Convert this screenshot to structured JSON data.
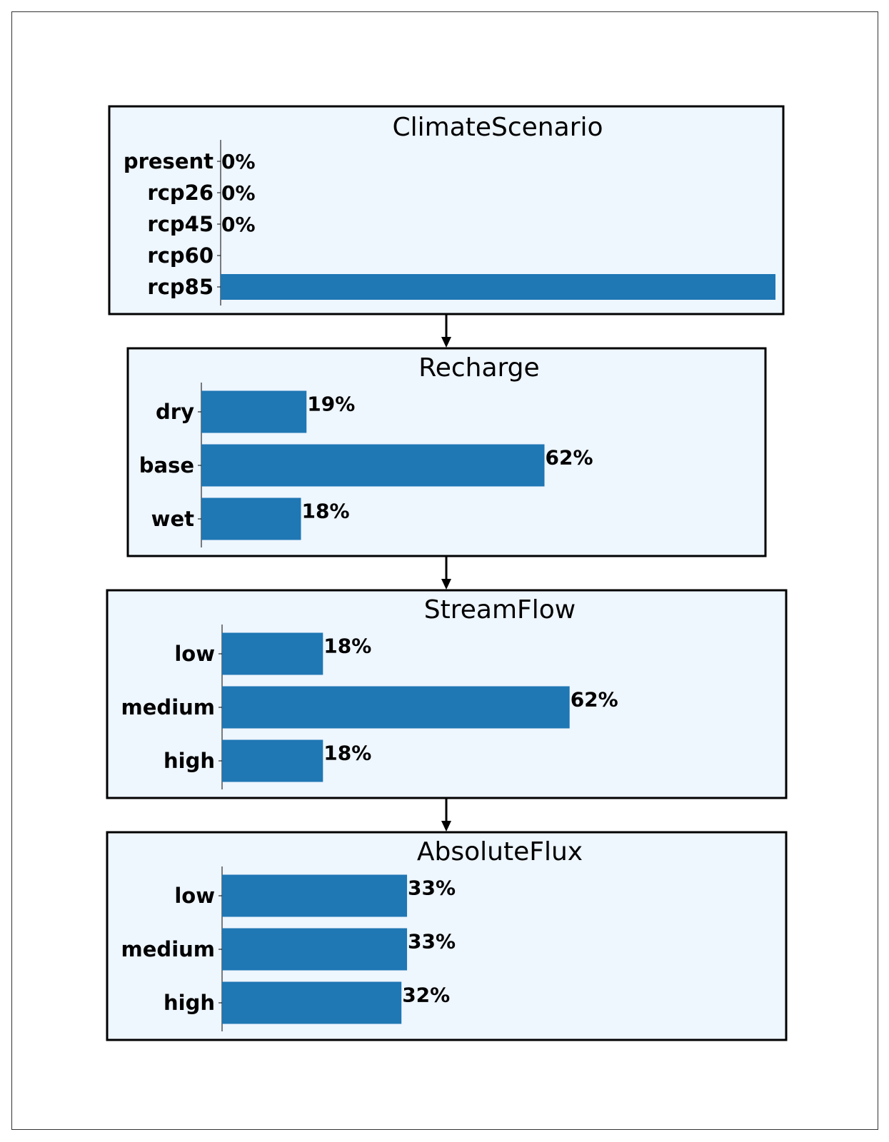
{
  "diagram": {
    "nodes": [
      {
        "title": "ClimateScenario",
        "states": [
          {
            "label": "present",
            "value": 0,
            "text": "0%"
          },
          {
            "label": "rcp26",
            "value": 0,
            "text": "0%"
          },
          {
            "label": "rcp45",
            "value": 0,
            "text": "0%"
          },
          {
            "label": "rcp60",
            "value": 0,
            "text": ""
          },
          {
            "label": "rcp85",
            "value": 100,
            "text": ""
          }
        ]
      },
      {
        "title": "Recharge",
        "states": [
          {
            "label": "dry",
            "value": 19,
            "text": "19%"
          },
          {
            "label": "base",
            "value": 62,
            "text": "62%"
          },
          {
            "label": "wet",
            "value": 18,
            "text": "18%"
          }
        ]
      },
      {
        "title": "StreamFlow",
        "states": [
          {
            "label": "low",
            "value": 18,
            "text": "18%"
          },
          {
            "label": "medium",
            "value": 62,
            "text": "62%"
          },
          {
            "label": "high",
            "value": 18,
            "text": "18%"
          }
        ]
      },
      {
        "title": "AbsoluteFlux",
        "states": [
          {
            "label": "low",
            "value": 33,
            "text": "33%"
          },
          {
            "label": "medium",
            "value": 33,
            "text": "33%"
          },
          {
            "label": "high",
            "value": 32,
            "text": "32%"
          }
        ]
      }
    ],
    "edges": [
      {
        "from": "ClimateScenario",
        "to": "Recharge"
      },
      {
        "from": "Recharge",
        "to": "StreamFlow"
      },
      {
        "from": "StreamFlow",
        "to": "AbsoluteFlux"
      }
    ],
    "colors": {
      "bar": "#1f77b4",
      "node_fill": "#eef6fe",
      "border": "#000000"
    }
  }
}
